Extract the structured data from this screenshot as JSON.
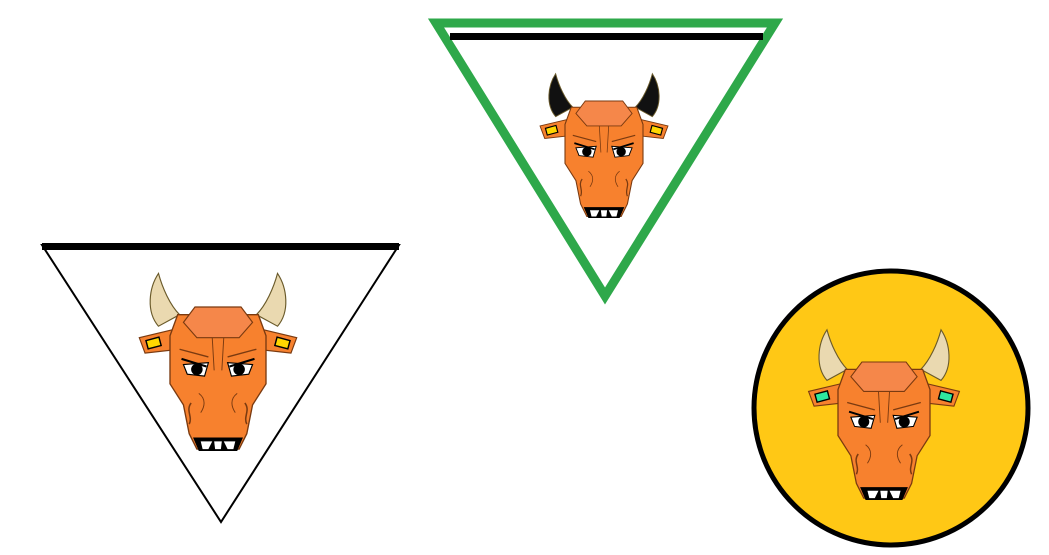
{
  "emblems": [
    {
      "kind": "triangle",
      "border_color": "#000000",
      "top_bar_color": "#000000",
      "horn_color": "#ead9b0",
      "ear_tag_color": "#ffd700"
    },
    {
      "kind": "triangle",
      "border_color": "#2ea84a",
      "top_bar_color": "#000000",
      "horn_color": "#111111",
      "ear_tag_color": "#ffd700"
    },
    {
      "kind": "circle",
      "fill_color": "#ffc815",
      "border_color": "#000000",
      "horn_color": "#ead9b0",
      "ear_tag_color": "#2ee8a0"
    }
  ],
  "bull_colors": {
    "head": "#f7812e",
    "head_outline": "#7a3a10",
    "forehead": "#f5874a",
    "eye_white": "#ffffff",
    "pupil": "#000000",
    "nostril_band": "#000000",
    "teeth": "#ffffff"
  }
}
